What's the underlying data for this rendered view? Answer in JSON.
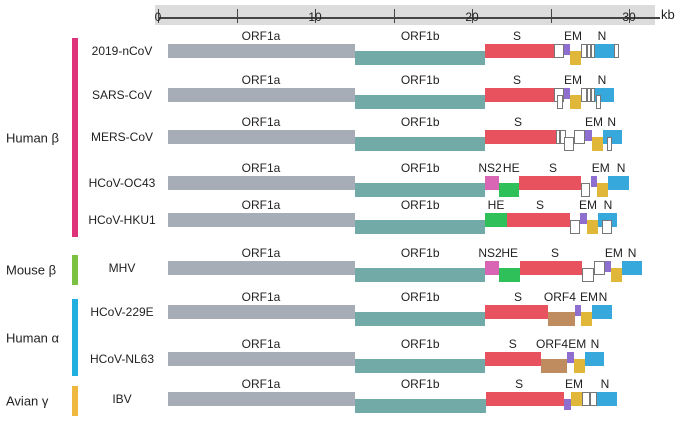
{
  "scale": {
    "unit": "kb",
    "ticks": [
      0,
      5,
      10,
      15,
      20,
      25,
      30
    ],
    "labels": [
      "0",
      "10",
      "20",
      "30"
    ],
    "label_values": [
      0,
      10,
      20,
      30
    ]
  },
  "colors": {
    "ORF1a": "#a7adb7",
    "ORF1b": "#72aaa8",
    "S": "#e8525f",
    "E": "#8e6fd0",
    "M": "#e1b73a",
    "N": "#36a8dc",
    "NS2": "#d966b5",
    "HE": "#2fc05a",
    "ORF4": "#bf8c5f",
    "outline": "#ffffff"
  },
  "groups": [
    {
      "label": "Human β",
      "color": "#e0327a",
      "rows": [
        0,
        4
      ]
    },
    {
      "label": "Mouse β",
      "color": "#7cc242",
      "rows": [
        5,
        5
      ]
    },
    {
      "label": "Human α",
      "color": "#1fb0e0",
      "rows": [
        6,
        7
      ]
    },
    {
      "label": "Avian γ",
      "color": "#efb93f",
      "rows": [
        8,
        8
      ]
    }
  ],
  "rows": [
    {
      "name": "2019-nCoV",
      "genes": [
        [
          "ORF1a",
          0.64,
          12.55,
          0
        ],
        [
          "ORF1b",
          12.55,
          20.83,
          1
        ],
        [
          "S",
          20.83,
          25.22,
          0
        ],
        [
          "outline",
          25.22,
          25.86,
          0
        ],
        [
          "E",
          25.86,
          26.24,
          0
        ],
        [
          "M",
          26.24,
          26.94,
          1
        ],
        [
          "outline",
          26.94,
          27.3,
          0
        ],
        [
          "outline",
          27.3,
          27.6,
          0
        ],
        [
          "outline",
          27.6,
          27.83,
          0
        ],
        [
          "N",
          27.83,
          29.04,
          0
        ],
        [
          "outline",
          29.04,
          29.36,
          0
        ]
      ],
      "labels": [
        [
          "ORF1a",
          6.56
        ],
        [
          "ORF1b",
          16.7
        ],
        [
          "S",
          22.87
        ],
        [
          "EM",
          26.43
        ],
        [
          "N",
          28.28
        ]
      ]
    },
    {
      "name": "SARS-CoV",
      "genes": [
        [
          "ORF1a",
          0.64,
          12.55,
          0
        ],
        [
          "ORF1b",
          12.55,
          20.83,
          1
        ],
        [
          "S",
          20.83,
          25.22,
          0
        ],
        [
          "outline",
          25.22,
          25.86,
          0
        ],
        [
          "outline",
          25.4,
          25.8,
          1
        ],
        [
          "E",
          25.86,
          26.24,
          0
        ],
        [
          "M",
          26.24,
          26.94,
          1
        ],
        [
          "outline",
          26.94,
          27.3,
          0
        ],
        [
          "outline",
          27.3,
          27.6,
          0
        ],
        [
          "outline",
          27.6,
          27.83,
          0
        ],
        [
          "N",
          27.83,
          29.04,
          0
        ],
        [
          "outline",
          27.9,
          28.2,
          1
        ]
      ],
      "labels": [
        [
          "ORF1a",
          6.56
        ],
        [
          "ORF1b",
          16.7
        ],
        [
          "S",
          22.87
        ],
        [
          "EM",
          26.43
        ],
        [
          "N",
          28.28
        ]
      ]
    },
    {
      "name": "MERS-CoV",
      "genes": [
        [
          "ORF1a",
          0.64,
          12.55,
          0
        ],
        [
          "ORF1b",
          12.55,
          20.83,
          1
        ],
        [
          "S",
          20.83,
          25.35,
          0
        ],
        [
          "outline",
          25.35,
          25.6,
          0
        ],
        [
          "outline",
          25.6,
          25.99,
          0
        ],
        [
          "outline",
          25.86,
          26.5,
          1
        ],
        [
          "outline",
          26.5,
          27.2,
          0
        ],
        [
          "E",
          27.2,
          27.64,
          0
        ],
        [
          "M",
          27.64,
          28.34,
          1
        ],
        [
          "N",
          28.34,
          29.55,
          0
        ],
        [
          "outline",
          28.6,
          28.9,
          1
        ]
      ],
      "labels": [
        [
          "ORF1a",
          6.56
        ],
        [
          "ORF1b",
          16.7
        ],
        [
          "S",
          22.93
        ],
        [
          "EM",
          27.77
        ],
        [
          "N",
          28.9
        ]
      ]
    },
    {
      "name": "HCoV-OC43",
      "genes": [
        [
          "ORF1a",
          0.64,
          12.55,
          0
        ],
        [
          "ORF1b",
          12.55,
          20.83,
          1
        ],
        [
          "NS2",
          20.83,
          21.72,
          0
        ],
        [
          "HE",
          21.72,
          22.99,
          1
        ],
        [
          "S",
          22.99,
          26.94,
          0
        ],
        [
          "outline",
          26.94,
          27.5,
          1
        ],
        [
          "E",
          27.58,
          27.96,
          0
        ],
        [
          "M",
          27.96,
          28.66,
          1
        ],
        [
          "N",
          28.66,
          30.0,
          0
        ]
      ],
      "labels": [
        [
          "ORF1a",
          6.56
        ],
        [
          "ORF1b",
          16.7
        ],
        [
          "NS2",
          21.15
        ],
        [
          "HE",
          22.5
        ],
        [
          "S",
          25.16
        ],
        [
          "EM",
          28.2
        ],
        [
          "N",
          29.5
        ]
      ]
    },
    {
      "name": "HCoV-HKU1",
      "genes": [
        [
          "ORF1a",
          0.64,
          12.55,
          0
        ],
        [
          "ORF1b",
          12.55,
          20.83,
          1
        ],
        [
          "HE",
          20.83,
          22.23,
          0
        ],
        [
          "S",
          22.23,
          26.24,
          0
        ],
        [
          "outline",
          26.24,
          26.88,
          1
        ],
        [
          "E",
          26.88,
          27.32,
          0
        ],
        [
          "M",
          27.32,
          28.03,
          1
        ],
        [
          "N",
          28.03,
          29.24,
          0
        ],
        [
          "outline",
          28.28,
          28.92,
          1
        ]
      ],
      "labels": [
        [
          "ORF1a",
          6.56
        ],
        [
          "ORF1b",
          16.7
        ],
        [
          "HE",
          21.53
        ],
        [
          "S",
          24.33
        ],
        [
          "EM",
          27.39
        ],
        [
          "N",
          28.66
        ]
      ]
    },
    {
      "name": "MHV",
      "genes": [
        [
          "ORF1a",
          0.64,
          12.55,
          0
        ],
        [
          "ORF1b",
          12.55,
          20.83,
          1
        ],
        [
          "NS2",
          20.83,
          21.72,
          0
        ],
        [
          "HE",
          21.72,
          23.06,
          1
        ],
        [
          "S",
          23.06,
          27.0,
          0
        ],
        [
          "outline",
          27.0,
          27.77,
          1
        ],
        [
          "outline",
          27.77,
          28.47,
          0
        ],
        [
          "E",
          28.47,
          28.85,
          0
        ],
        [
          "M",
          28.85,
          29.55,
          1
        ],
        [
          "N",
          29.55,
          30.83,
          0
        ]
      ],
      "labels": [
        [
          "ORF1a",
          6.56
        ],
        [
          "ORF1b",
          16.7
        ],
        [
          "NS2",
          21.15
        ],
        [
          "HE",
          22.4
        ],
        [
          "S",
          25.29
        ],
        [
          "EM",
          29.04
        ],
        [
          "N",
          30.2
        ]
      ]
    },
    {
      "name": "HCoV-229E",
      "genes": [
        [
          "ORF1a",
          0.64,
          12.55,
          0
        ],
        [
          "ORF1b",
          12.55,
          20.83,
          1
        ],
        [
          "S",
          20.83,
          24.84,
          0
        ],
        [
          "ORF4",
          24.84,
          26.56,
          1
        ],
        [
          "E",
          26.56,
          26.94,
          0
        ],
        [
          "M",
          26.94,
          27.64,
          1
        ],
        [
          "N",
          27.64,
          28.92,
          0
        ]
      ],
      "labels": [
        [
          "ORF1a",
          6.56
        ],
        [
          "ORF1b",
          16.7
        ],
        [
          "S",
          22.93
        ],
        [
          "ORF4",
          25.6
        ],
        [
          "EM",
          27.45
        ],
        [
          "N",
          28.34
        ]
      ]
    },
    {
      "name": "HCoV-NL63",
      "genes": [
        [
          "ORF1a",
          0.64,
          12.55,
          0
        ],
        [
          "ORF1b",
          12.55,
          20.83,
          1
        ],
        [
          "S",
          20.83,
          24.39,
          0
        ],
        [
          "ORF4",
          24.39,
          26.05,
          1
        ],
        [
          "E",
          26.05,
          26.5,
          0
        ],
        [
          "M",
          26.5,
          27.2,
          1
        ],
        [
          "N",
          27.2,
          28.41,
          0
        ]
      ],
      "labels": [
        [
          "ORF1a",
          6.56
        ],
        [
          "ORF1b",
          16.7
        ],
        [
          "S",
          22.6
        ],
        [
          "ORF4",
          25.1
        ],
        [
          "EM",
          26.7
        ],
        [
          "N",
          27.83
        ]
      ]
    },
    {
      "name": "IBV",
      "genes": [
        [
          "ORF1a",
          0.64,
          12.55,
          0
        ],
        [
          "ORF1b",
          12.55,
          20.9,
          1
        ],
        [
          "S",
          20.9,
          25.86,
          0
        ],
        [
          "E",
          25.86,
          26.3,
          1
        ],
        [
          "M",
          26.3,
          27.0,
          0
        ],
        [
          "outline",
          27.0,
          27.5,
          0
        ],
        [
          "outline",
          27.5,
          27.96,
          0
        ],
        [
          "N",
          27.96,
          29.24,
          0
        ]
      ],
      "labels": [
        [
          "ORF1a",
          6.56
        ],
        [
          "ORF1b",
          16.7
        ],
        [
          "S",
          23.0
        ],
        [
          "EM",
          26.5
        ],
        [
          "N",
          28.47
        ]
      ]
    }
  ]
}
